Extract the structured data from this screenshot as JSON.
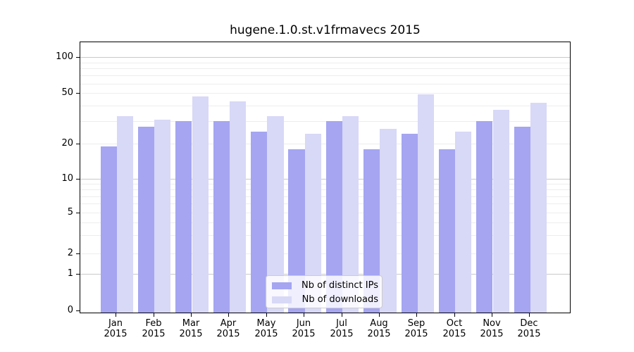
{
  "title": "hugene.1.0.st.v1frmavecs 2015",
  "chart_data": {
    "type": "bar",
    "title": "hugene.1.0.st.v1frmavecs 2015",
    "categories": [
      "Jan",
      "Feb",
      "Mar",
      "Apr",
      "May",
      "Jun",
      "Jul",
      "Aug",
      "Sep",
      "Oct",
      "Nov",
      "Dec"
    ],
    "category_year": "2015",
    "series": [
      {
        "name": "Nb of distinct IPs",
        "color": "#a5a5f2",
        "values": [
          19,
          27,
          30,
          30,
          25,
          18,
          30,
          18,
          24,
          18,
          30,
          27
        ]
      },
      {
        "name": "Nb of downloads",
        "color": "#d8d8f7",
        "values": [
          33,
          31,
          47,
          43,
          33,
          24,
          33,
          26,
          49,
          25,
          37,
          42
        ]
      }
    ],
    "xlabel": "",
    "ylabel": "",
    "y_ticks": [
      0,
      1,
      2,
      5,
      10,
      20,
      50,
      100
    ],
    "y_minor_gridlines": [
      2,
      3,
      4,
      5,
      6,
      7,
      8,
      9,
      20,
      30,
      40,
      50,
      60,
      70,
      80,
      90
    ],
    "y_major_gridlines": [
      1,
      10,
      100
    ],
    "ylim": [
      0,
      135
    ],
    "yscale": "log-like (compressed near zero)",
    "grid": true,
    "legend_position": "inside bottom-center"
  }
}
